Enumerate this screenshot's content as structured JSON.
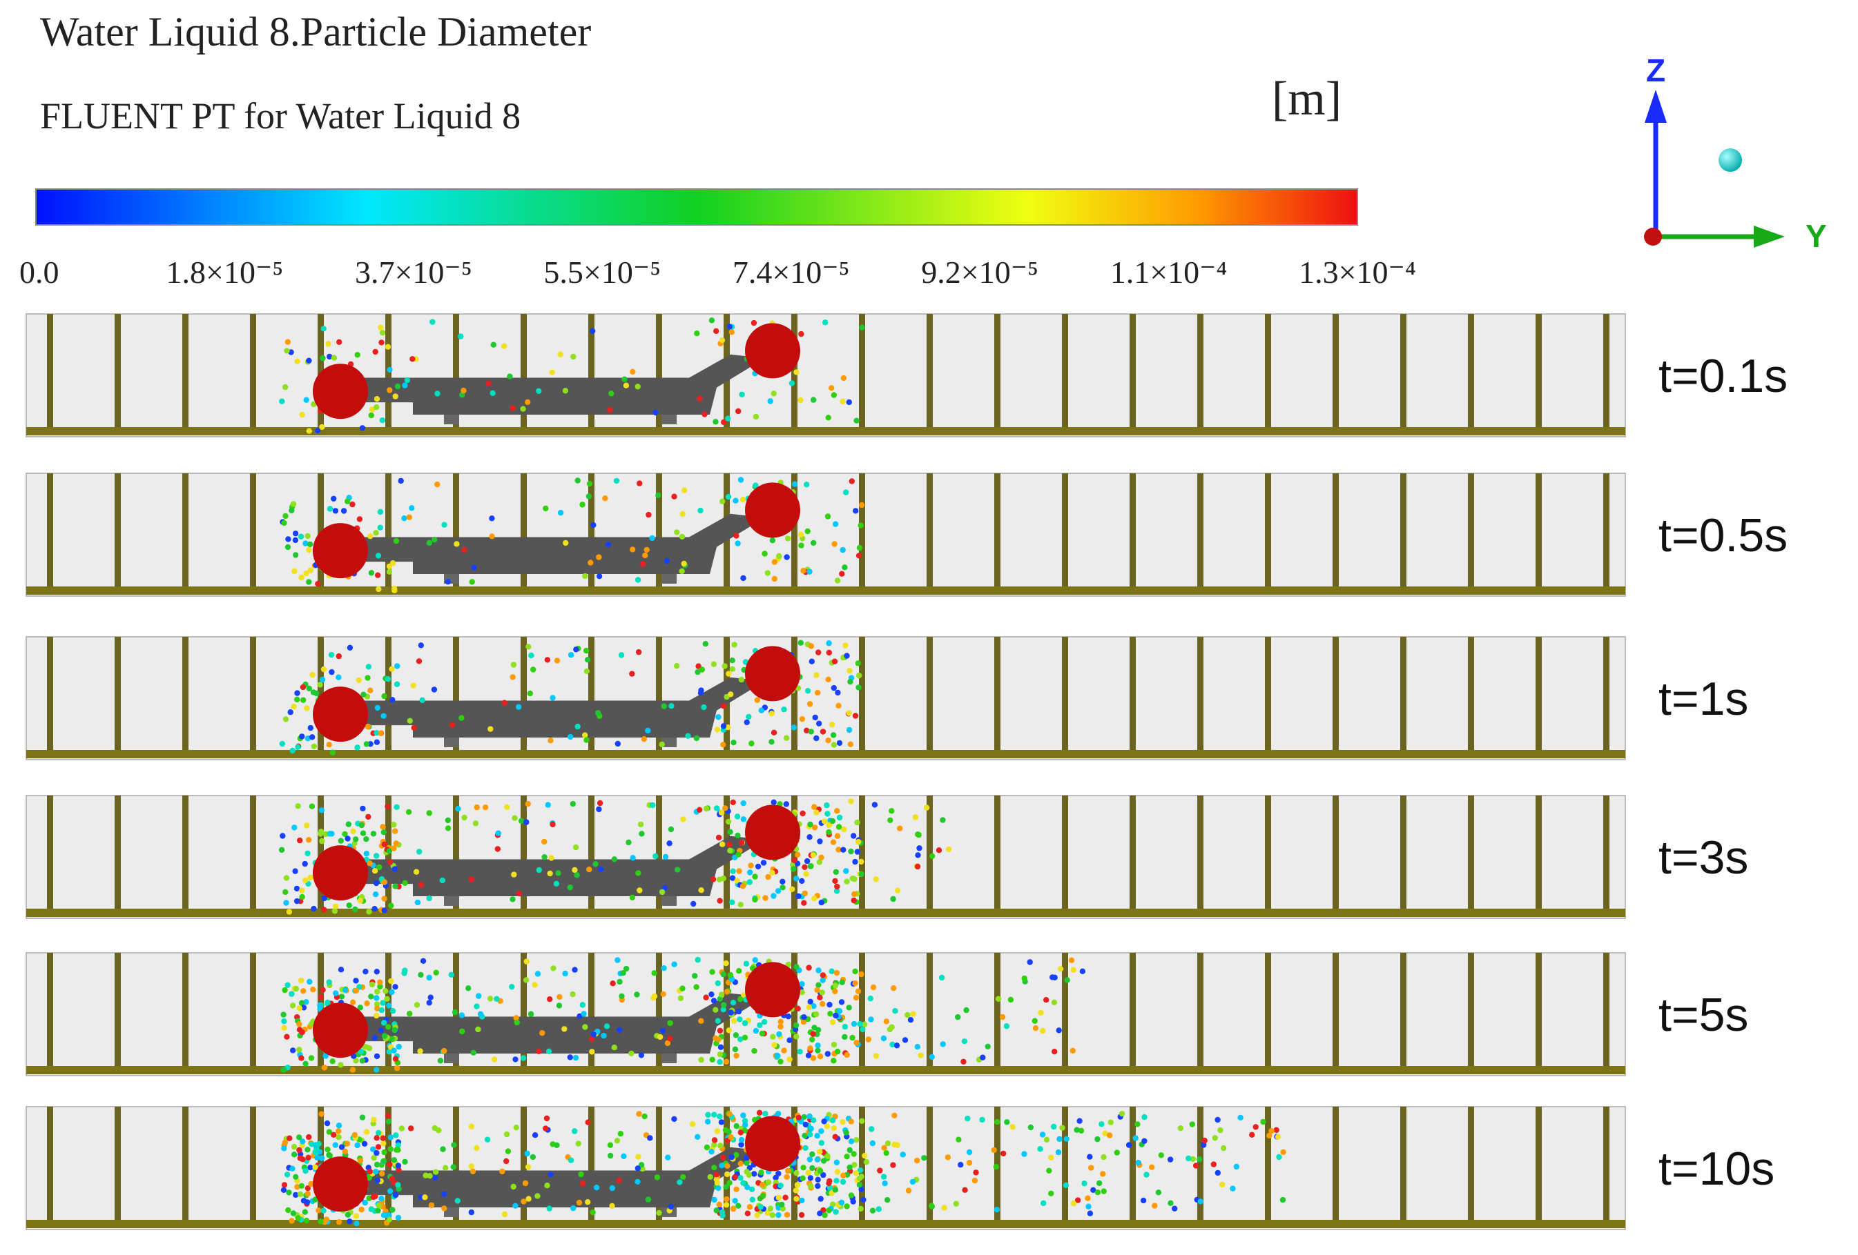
{
  "header": {
    "title": "Water Liquid 8.Particle Diameter",
    "subtitle": "FLUENT PT for Water Liquid 8",
    "unit": "[m]"
  },
  "colorbar": {
    "labels": [
      "0.0",
      "1.8×10⁻⁵",
      "3.7×10⁻⁵",
      "5.5×10⁻⁵",
      "7.4×10⁻⁵",
      "9.2×10⁻⁵",
      "1.1×10⁻⁴",
      "1.3×10⁻⁴"
    ]
  },
  "axes": {
    "vertical": "Z",
    "horizontal": "Y"
  },
  "panels": [
    "t=0.1s",
    "t=0.5s",
    "t=1s",
    "t=3s",
    "t=5s",
    "t=10s"
  ]
}
